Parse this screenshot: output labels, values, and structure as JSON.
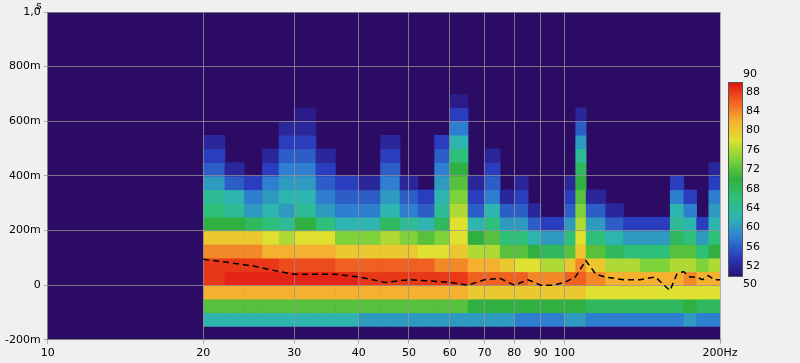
{
  "chart_data": {
    "type": "heatmap",
    "y_label": "s",
    "log": "x",
    "grid": true,
    "xlim": [
      10,
      200
    ],
    "ylim": [
      -0.2,
      1
    ],
    "xticks": [
      10,
      20,
      30,
      40,
      50,
      60,
      70,
      80,
      90,
      100,
      {
        "value": 200,
        "label": "200Hz"
      }
    ],
    "yticks": [
      {
        "value": -0.2,
        "label": "-200m"
      },
      0,
      {
        "value": 0.2,
        "label": "200m"
      },
      {
        "value": 0.4,
        "label": "400m"
      },
      {
        "value": 0.6,
        "label": "600m"
      },
      {
        "value": 0.8,
        "label": "800m"
      },
      {
        "value": 1,
        "label": "1,0"
      }
    ],
    "heatmap": {
      "x_edges": [
        20,
        22,
        24,
        26,
        28,
        30,
        33,
        36,
        40,
        44,
        48,
        52,
        56,
        60,
        65,
        70,
        75,
        80,
        85,
        90,
        95,
        100,
        105,
        110,
        120,
        130,
        140,
        150,
        160,
        170,
        180,
        190,
        200
      ],
      "y_edges": [
        -0.15,
        -0.1,
        -0.05,
        0,
        0.05,
        0.1,
        0.15,
        0.2,
        0.25,
        0.3,
        0.35,
        0.4,
        0.45,
        0.5,
        0.55,
        0.6,
        0.65,
        0.7
      ],
      "cells": [
        [
          62,
          62,
          62,
          62,
          62,
          62,
          62,
          62,
          60,
          60,
          60,
          60,
          60,
          60,
          60,
          60,
          60,
          58,
          58,
          58,
          58,
          60,
          60,
          58,
          58,
          58,
          58,
          58,
          58,
          60,
          58,
          58
        ],
        [
          72,
          72,
          72,
          72,
          72,
          72,
          72,
          72,
          72,
          72,
          72,
          72,
          72,
          72,
          70,
          70,
          70,
          70,
          70,
          70,
          70,
          70,
          70,
          68,
          68,
          68,
          68,
          68,
          68,
          70,
          68,
          68
        ],
        [
          82,
          82,
          82,
          82,
          82,
          82,
          82,
          82,
          82,
          82,
          82,
          82,
          82,
          82,
          80,
          80,
          80,
          80,
          80,
          80,
          80,
          80,
          80,
          78,
          78,
          78,
          78,
          78,
          78,
          78,
          78,
          78
        ],
        [
          88,
          89,
          89,
          89,
          89,
          89,
          89,
          89,
          88,
          88,
          88,
          88,
          88,
          88,
          86,
          86,
          86,
          86,
          84,
          84,
          84,
          86,
          86,
          84,
          82,
          82,
          82,
          82,
          82,
          84,
          82,
          82
        ],
        [
          88,
          88,
          88,
          88,
          87,
          87,
          87,
          86,
          86,
          86,
          86,
          86,
          84,
          84,
          82,
          82,
          80,
          78,
          78,
          76,
          76,
          80,
          84,
          80,
          76,
          76,
          74,
          74,
          76,
          76,
          74,
          76
        ],
        [
          84,
          84,
          84,
          82,
          82,
          82,
          82,
          80,
          80,
          80,
          80,
          78,
          78,
          80,
          76,
          76,
          72,
          72,
          70,
          68,
          68,
          72,
          80,
          72,
          68,
          66,
          66,
          66,
          72,
          72,
          66,
          70
        ],
        [
          80,
          80,
          80,
          78,
          76,
          78,
          78,
          74,
          74,
          76,
          74,
          72,
          74,
          78,
          70,
          72,
          66,
          66,
          62,
          60,
          60,
          66,
          78,
          66,
          62,
          60,
          60,
          60,
          68,
          66,
          60,
          66
        ],
        [
          70,
          70,
          68,
          66,
          64,
          70,
          66,
          62,
          62,
          68,
          64,
          62,
          68,
          78,
          62,
          66,
          60,
          60,
          56,
          54,
          54,
          60,
          76,
          60,
          56,
          54,
          54,
          54,
          64,
          62,
          54,
          62
        ],
        [
          66,
          64,
          60,
          62,
          60,
          64,
          60,
          58,
          58,
          62,
          58,
          56,
          64,
          76,
          56,
          62,
          56,
          56,
          52,
          null,
          null,
          56,
          74,
          56,
          52,
          null,
          null,
          null,
          62,
          58,
          null,
          60
        ],
        [
          64,
          62,
          58,
          60,
          62,
          62,
          58,
          56,
          56,
          60,
          56,
          54,
          62,
          74,
          54,
          58,
          52,
          54,
          null,
          null,
          null,
          54,
          72,
          52,
          null,
          null,
          null,
          null,
          58,
          54,
          null,
          58
        ],
        [
          60,
          56,
          54,
          58,
          60,
          60,
          56,
          54,
          52,
          58,
          52,
          null,
          60,
          72,
          52,
          56,
          null,
          52,
          null,
          null,
          null,
          52,
          70,
          null,
          null,
          null,
          null,
          null,
          54,
          null,
          null,
          54
        ],
        [
          56,
          52,
          null,
          54,
          58,
          58,
          54,
          null,
          null,
          56,
          null,
          null,
          58,
          70,
          null,
          54,
          null,
          null,
          null,
          null,
          null,
          null,
          68,
          null,
          null,
          null,
          null,
          null,
          null,
          null,
          null,
          52
        ],
        [
          54,
          null,
          null,
          52,
          56,
          56,
          52,
          null,
          null,
          54,
          null,
          null,
          56,
          66,
          null,
          52,
          null,
          null,
          null,
          null,
          null,
          null,
          64,
          null,
          null,
          null,
          null,
          null,
          null,
          null,
          null,
          null
        ],
        [
          52,
          null,
          null,
          null,
          54,
          54,
          null,
          null,
          null,
          52,
          null,
          null,
          54,
          62,
          null,
          null,
          null,
          null,
          null,
          null,
          null,
          null,
          60,
          null,
          null,
          null,
          null,
          null,
          null,
          null,
          null,
          null
        ],
        [
          null,
          null,
          null,
          null,
          52,
          52,
          null,
          null,
          null,
          null,
          null,
          null,
          null,
          58,
          null,
          null,
          null,
          null,
          null,
          null,
          null,
          null,
          56,
          null,
          null,
          null,
          null,
          null,
          null,
          null,
          null,
          null
        ],
        [
          null,
          null,
          null,
          null,
          null,
          51,
          null,
          null,
          null,
          null,
          null,
          null,
          null,
          54,
          null,
          null,
          null,
          null,
          null,
          null,
          null,
          null,
          52,
          null,
          null,
          null,
          null,
          null,
          null,
          null,
          null,
          null
        ],
        [
          null,
          null,
          null,
          null,
          null,
          null,
          null,
          null,
          null,
          null,
          null,
          null,
          null,
          51,
          null,
          null,
          null,
          null,
          null,
          null,
          null,
          null,
          null,
          null,
          null,
          null,
          null,
          null,
          null,
          null,
          null,
          null
        ]
      ]
    },
    "colorbar": {
      "range": [
        50,
        90
      ],
      "ticks": [
        52,
        56,
        60,
        64,
        68,
        72,
        76,
        80,
        84,
        88
      ]
    },
    "series": [
      {
        "type": "line",
        "color": "#000000",
        "line_style": "dashed",
        "x": [
          20,
          22,
          25,
          28,
          30,
          33,
          36,
          40,
          45,
          50,
          55,
          60,
          65,
          70,
          75,
          80,
          85,
          90,
          95,
          100,
          105,
          110,
          115,
          120,
          130,
          140,
          150,
          160,
          165,
          170,
          175,
          180,
          185,
          190,
          195,
          200
        ],
        "values": [
          0.095,
          0.085,
          0.07,
          0.05,
          0.04,
          0.04,
          0.04,
          0.03,
          0.01,
          0.02,
          0.015,
          0.01,
          0.0,
          0.02,
          0.025,
          0.0,
          0.02,
          0.0,
          0.0,
          0.01,
          0.03,
          0.09,
          0.04,
          0.03,
          0.02,
          0.02,
          0.03,
          -0.02,
          0.04,
          0.05,
          0.03,
          0.03,
          0.02,
          0.035,
          0.02,
          0.02
        ]
      }
    ]
  }
}
